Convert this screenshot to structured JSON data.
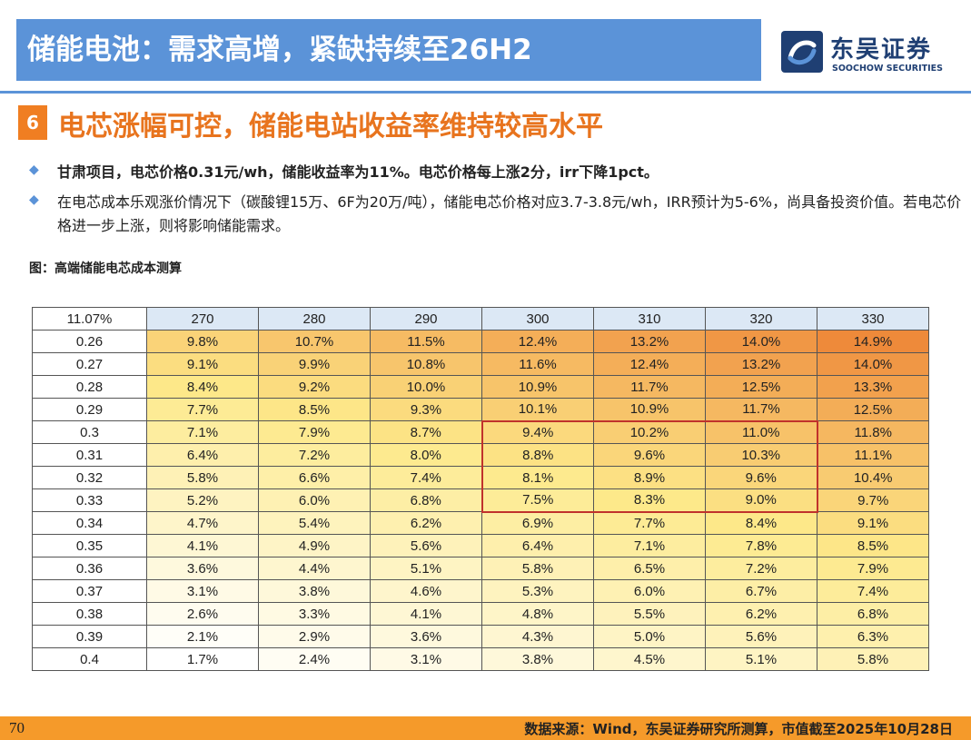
{
  "header": {
    "title": "储能电池：需求高增，紧缺持续至26H2",
    "logo_cn": "东吴证券",
    "logo_en": "SOOCHOW SECURITIES",
    "brand_color": "#5b93d8"
  },
  "section": {
    "number": "6",
    "title": "电芯涨幅可控，储能电站收益率维持较高水平",
    "accent_color": "#f07e22"
  },
  "bullets": [
    "甘肃项目，电芯价格0.31元/wh，储能收益率为11%。电芯价格每上涨2分，irr下降1pct。",
    "在电芯成本乐观涨价情况下（碳酸锂15万、6F为20万/吨），储能电芯价格对应3.7-3.8元/wh，IRR预计为5-6%，尚具备投资价值。若电芯价格进一步上涨，则将影响储能需求。"
  ],
  "figure": {
    "caption": "图：高端储能电芯成本测算"
  },
  "chart_data": {
    "type": "heatmap",
    "corner": "11.07%",
    "columns": [
      "270",
      "280",
      "290",
      "300",
      "310",
      "320",
      "330"
    ],
    "rows": [
      "0.26",
      "0.27",
      "0.28",
      "0.29",
      "0.3",
      "0.31",
      "0.32",
      "0.33",
      "0.34",
      "0.35",
      "0.36",
      "0.37",
      "0.38",
      "0.39",
      "0.4"
    ],
    "values": [
      [
        "9.8%",
        "10.7%",
        "11.5%",
        "12.4%",
        "13.2%",
        "14.0%",
        "14.9%"
      ],
      [
        "9.1%",
        "9.9%",
        "10.8%",
        "11.6%",
        "12.4%",
        "13.2%",
        "14.0%"
      ],
      [
        "8.4%",
        "9.2%",
        "10.0%",
        "10.9%",
        "11.7%",
        "12.5%",
        "13.3%"
      ],
      [
        "7.7%",
        "8.5%",
        "9.3%",
        "10.1%",
        "10.9%",
        "11.7%",
        "12.5%"
      ],
      [
        "7.1%",
        "7.9%",
        "8.7%",
        "9.4%",
        "10.2%",
        "11.0%",
        "11.8%"
      ],
      [
        "6.4%",
        "7.2%",
        "8.0%",
        "8.8%",
        "9.6%",
        "10.3%",
        "11.1%"
      ],
      [
        "5.8%",
        "6.6%",
        "7.4%",
        "8.1%",
        "8.9%",
        "9.6%",
        "10.4%"
      ],
      [
        "5.2%",
        "6.0%",
        "6.8%",
        "7.5%",
        "8.3%",
        "9.0%",
        "9.7%"
      ],
      [
        "4.7%",
        "5.4%",
        "6.2%",
        "6.9%",
        "7.7%",
        "8.4%",
        "9.1%"
      ],
      [
        "4.1%",
        "4.9%",
        "5.6%",
        "6.4%",
        "7.1%",
        "7.8%",
        "8.5%"
      ],
      [
        "3.6%",
        "4.4%",
        "5.1%",
        "5.8%",
        "6.5%",
        "7.2%",
        "7.9%"
      ],
      [
        "3.1%",
        "3.8%",
        "4.6%",
        "5.3%",
        "6.0%",
        "6.7%",
        "7.4%"
      ],
      [
        "2.6%",
        "3.3%",
        "4.1%",
        "4.8%",
        "5.5%",
        "6.2%",
        "6.8%"
      ],
      [
        "2.1%",
        "2.9%",
        "3.6%",
        "4.3%",
        "5.0%",
        "5.6%",
        "6.3%"
      ],
      [
        "1.7%",
        "2.4%",
        "3.1%",
        "3.8%",
        "4.5%",
        "5.1%",
        "5.8%"
      ]
    ],
    "highlight": {
      "row_start": 4,
      "row_end": 7,
      "col_start": 3,
      "col_end": 5,
      "color": "#c0322c"
    },
    "color_scale": {
      "low": "#ffffff",
      "mid": "#fde98a",
      "high": "#ee8a3a"
    }
  },
  "footer": {
    "page": "70",
    "source": "数据来源：Wind，东吴证券研究所测算，市值截至2025年10月28日"
  }
}
